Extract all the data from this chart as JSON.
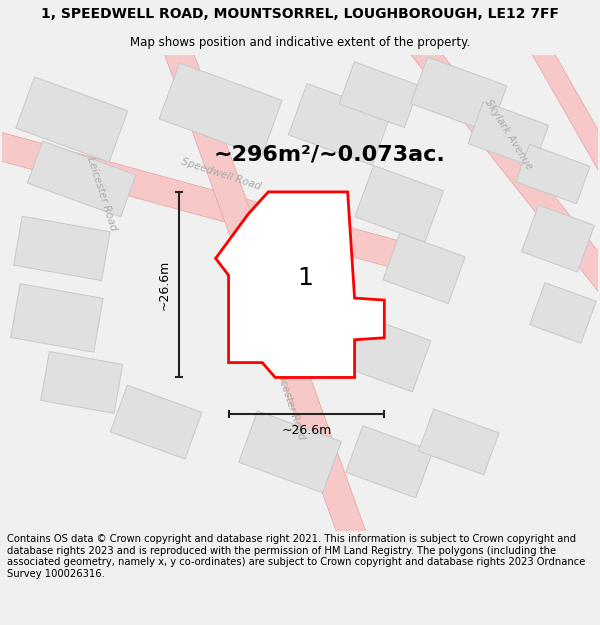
{
  "title_line1": "1, SPEEDWELL ROAD, MOUNTSORREL, LOUGHBOROUGH, LE12 7FF",
  "title_line2": "Map shows position and indicative extent of the property.",
  "area_text": "~296m²/~0.073ac.",
  "dim_horizontal": "~26.6m",
  "dim_vertical": "~26.6m",
  "label_number": "1",
  "footer_text": "Contains OS data © Crown copyright and database right 2021. This information is subject to Crown copyright and database rights 2023 and is reproduced with the permission of HM Land Registry. The polygons (including the associated geometry, namely x, y co-ordinates) are subject to Crown copyright and database rights 2023 Ordnance Survey 100026316.",
  "bg_color": "#f0f0f0",
  "map_bg": "#ffffff",
  "plot_fill": "#ffffff",
  "plot_edge": "#ff0000",
  "road_fill": "#f7c8c8",
  "road_stroke": "#e8a0a0",
  "block_fill": "#e0e0e0",
  "block_stroke": "#c8c8c8",
  "dim_line_color": "#222222",
  "road_label_color": "#aaaaaa",
  "title_fontsize": 10,
  "subtitle_fontsize": 8.5,
  "area_fontsize": 16,
  "dim_fontsize": 9,
  "label_fontsize": 18,
  "footer_fontsize": 7.2
}
